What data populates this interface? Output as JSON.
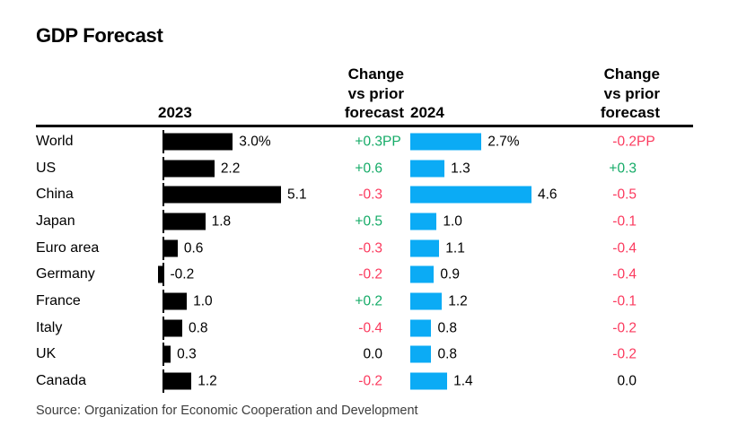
{
  "title": "GDP Forecast",
  "source": "Source: Organization for Economic Cooperation and Development",
  "headers": {
    "year_left": "2023",
    "change_left": "Change vs prior forecast",
    "year_right": "2024",
    "change_right": "Change vs prior forecast"
  },
  "colors": {
    "bar_2023": "#000000",
    "bar_2024": "#0babf5",
    "positive": "#14ab67",
    "negative": "#fb3a5e",
    "neutral": "#000000",
    "text": "#000000",
    "source_text": "#3d3d3d"
  },
  "chart_data": {
    "type": "bar",
    "orientation": "horizontal",
    "title": "GDP Forecast",
    "unit": "percent",
    "grid": false,
    "categories": [
      "World",
      "US",
      "China",
      "Japan",
      "Euro area",
      "Germany",
      "France",
      "Italy",
      "UK",
      "Canada"
    ],
    "series": [
      {
        "name": "2023",
        "color": "#000000",
        "values": [
          3.0,
          2.2,
          5.1,
          1.8,
          0.6,
          -0.2,
          1.0,
          0.8,
          0.3,
          1.2
        ]
      },
      {
        "name": "2024",
        "color": "#0babf5",
        "values": [
          2.7,
          1.3,
          4.6,
          1.0,
          1.1,
          0.9,
          1.2,
          0.8,
          0.8,
          1.4
        ]
      },
      {
        "name": "Change vs prior forecast (2023)",
        "unit": "PP",
        "values": [
          0.3,
          0.6,
          -0.3,
          0.5,
          -0.3,
          -0.2,
          0.2,
          -0.4,
          0.0,
          -0.2
        ]
      },
      {
        "name": "Change vs prior forecast (2024)",
        "unit": "PP",
        "values": [
          -0.2,
          0.3,
          -0.5,
          -0.1,
          -0.4,
          -0.4,
          -0.1,
          -0.2,
          -0.2,
          0.0
        ]
      }
    ],
    "source": "Source: Organization for Economic Cooperation and Development"
  },
  "rows": [
    {
      "label": "World",
      "y2023": 3.0,
      "y2023_label": "3.0%",
      "chg1": "+0.3",
      "chg1_suffix": "PP",
      "y2024": 2.7,
      "y2024_label": "2.7%",
      "chg2": "-0.2",
      "chg2_suffix": "PP"
    },
    {
      "label": "US",
      "y2023": 2.2,
      "y2023_label": "2.2",
      "chg1": "+0.6",
      "chg1_suffix": "",
      "y2024": 1.3,
      "y2024_label": "1.3",
      "chg2": "+0.3",
      "chg2_suffix": ""
    },
    {
      "label": "China",
      "y2023": 5.1,
      "y2023_label": "5.1",
      "chg1": "-0.3",
      "chg1_suffix": "",
      "y2024": 4.6,
      "y2024_label": "4.6",
      "chg2": "-0.5",
      "chg2_suffix": ""
    },
    {
      "label": "Japan",
      "y2023": 1.8,
      "y2023_label": "1.8",
      "chg1": "+0.5",
      "chg1_suffix": "",
      "y2024": 1.0,
      "y2024_label": "1.0",
      "chg2": "-0.1",
      "chg2_suffix": ""
    },
    {
      "label": "Euro area",
      "y2023": 0.6,
      "y2023_label": "0.6",
      "chg1": "-0.3",
      "chg1_suffix": "",
      "y2024": 1.1,
      "y2024_label": "1.1",
      "chg2": "-0.4",
      "chg2_suffix": ""
    },
    {
      "label": "Germany",
      "y2023": -0.2,
      "y2023_label": "-0.2",
      "chg1": "-0.2",
      "chg1_suffix": "",
      "y2024": 0.9,
      "y2024_label": "0.9",
      "chg2": "-0.4",
      "chg2_suffix": ""
    },
    {
      "label": "France",
      "y2023": 1.0,
      "y2023_label": "1.0",
      "chg1": "+0.2",
      "chg1_suffix": "",
      "y2024": 1.2,
      "y2024_label": "1.2",
      "chg2": "-0.1",
      "chg2_suffix": ""
    },
    {
      "label": "Italy",
      "y2023": 0.8,
      "y2023_label": "0.8",
      "chg1": "-0.4",
      "chg1_suffix": "",
      "y2024": 0.8,
      "y2024_label": "0.8",
      "chg2": "-0.2",
      "chg2_suffix": ""
    },
    {
      "label": "UK",
      "y2023": 0.3,
      "y2023_label": "0.3",
      "chg1": "0.0",
      "chg1_suffix": "",
      "y2024": 0.8,
      "y2024_label": "0.8",
      "chg2": "-0.2",
      "chg2_suffix": ""
    },
    {
      "label": "Canada",
      "y2023": 1.2,
      "y2023_label": "1.2",
      "chg1": "-0.2",
      "chg1_suffix": "",
      "y2024": 1.4,
      "y2024_label": "1.4",
      "chg2": "0.0",
      "chg2_suffix": ""
    }
  ]
}
